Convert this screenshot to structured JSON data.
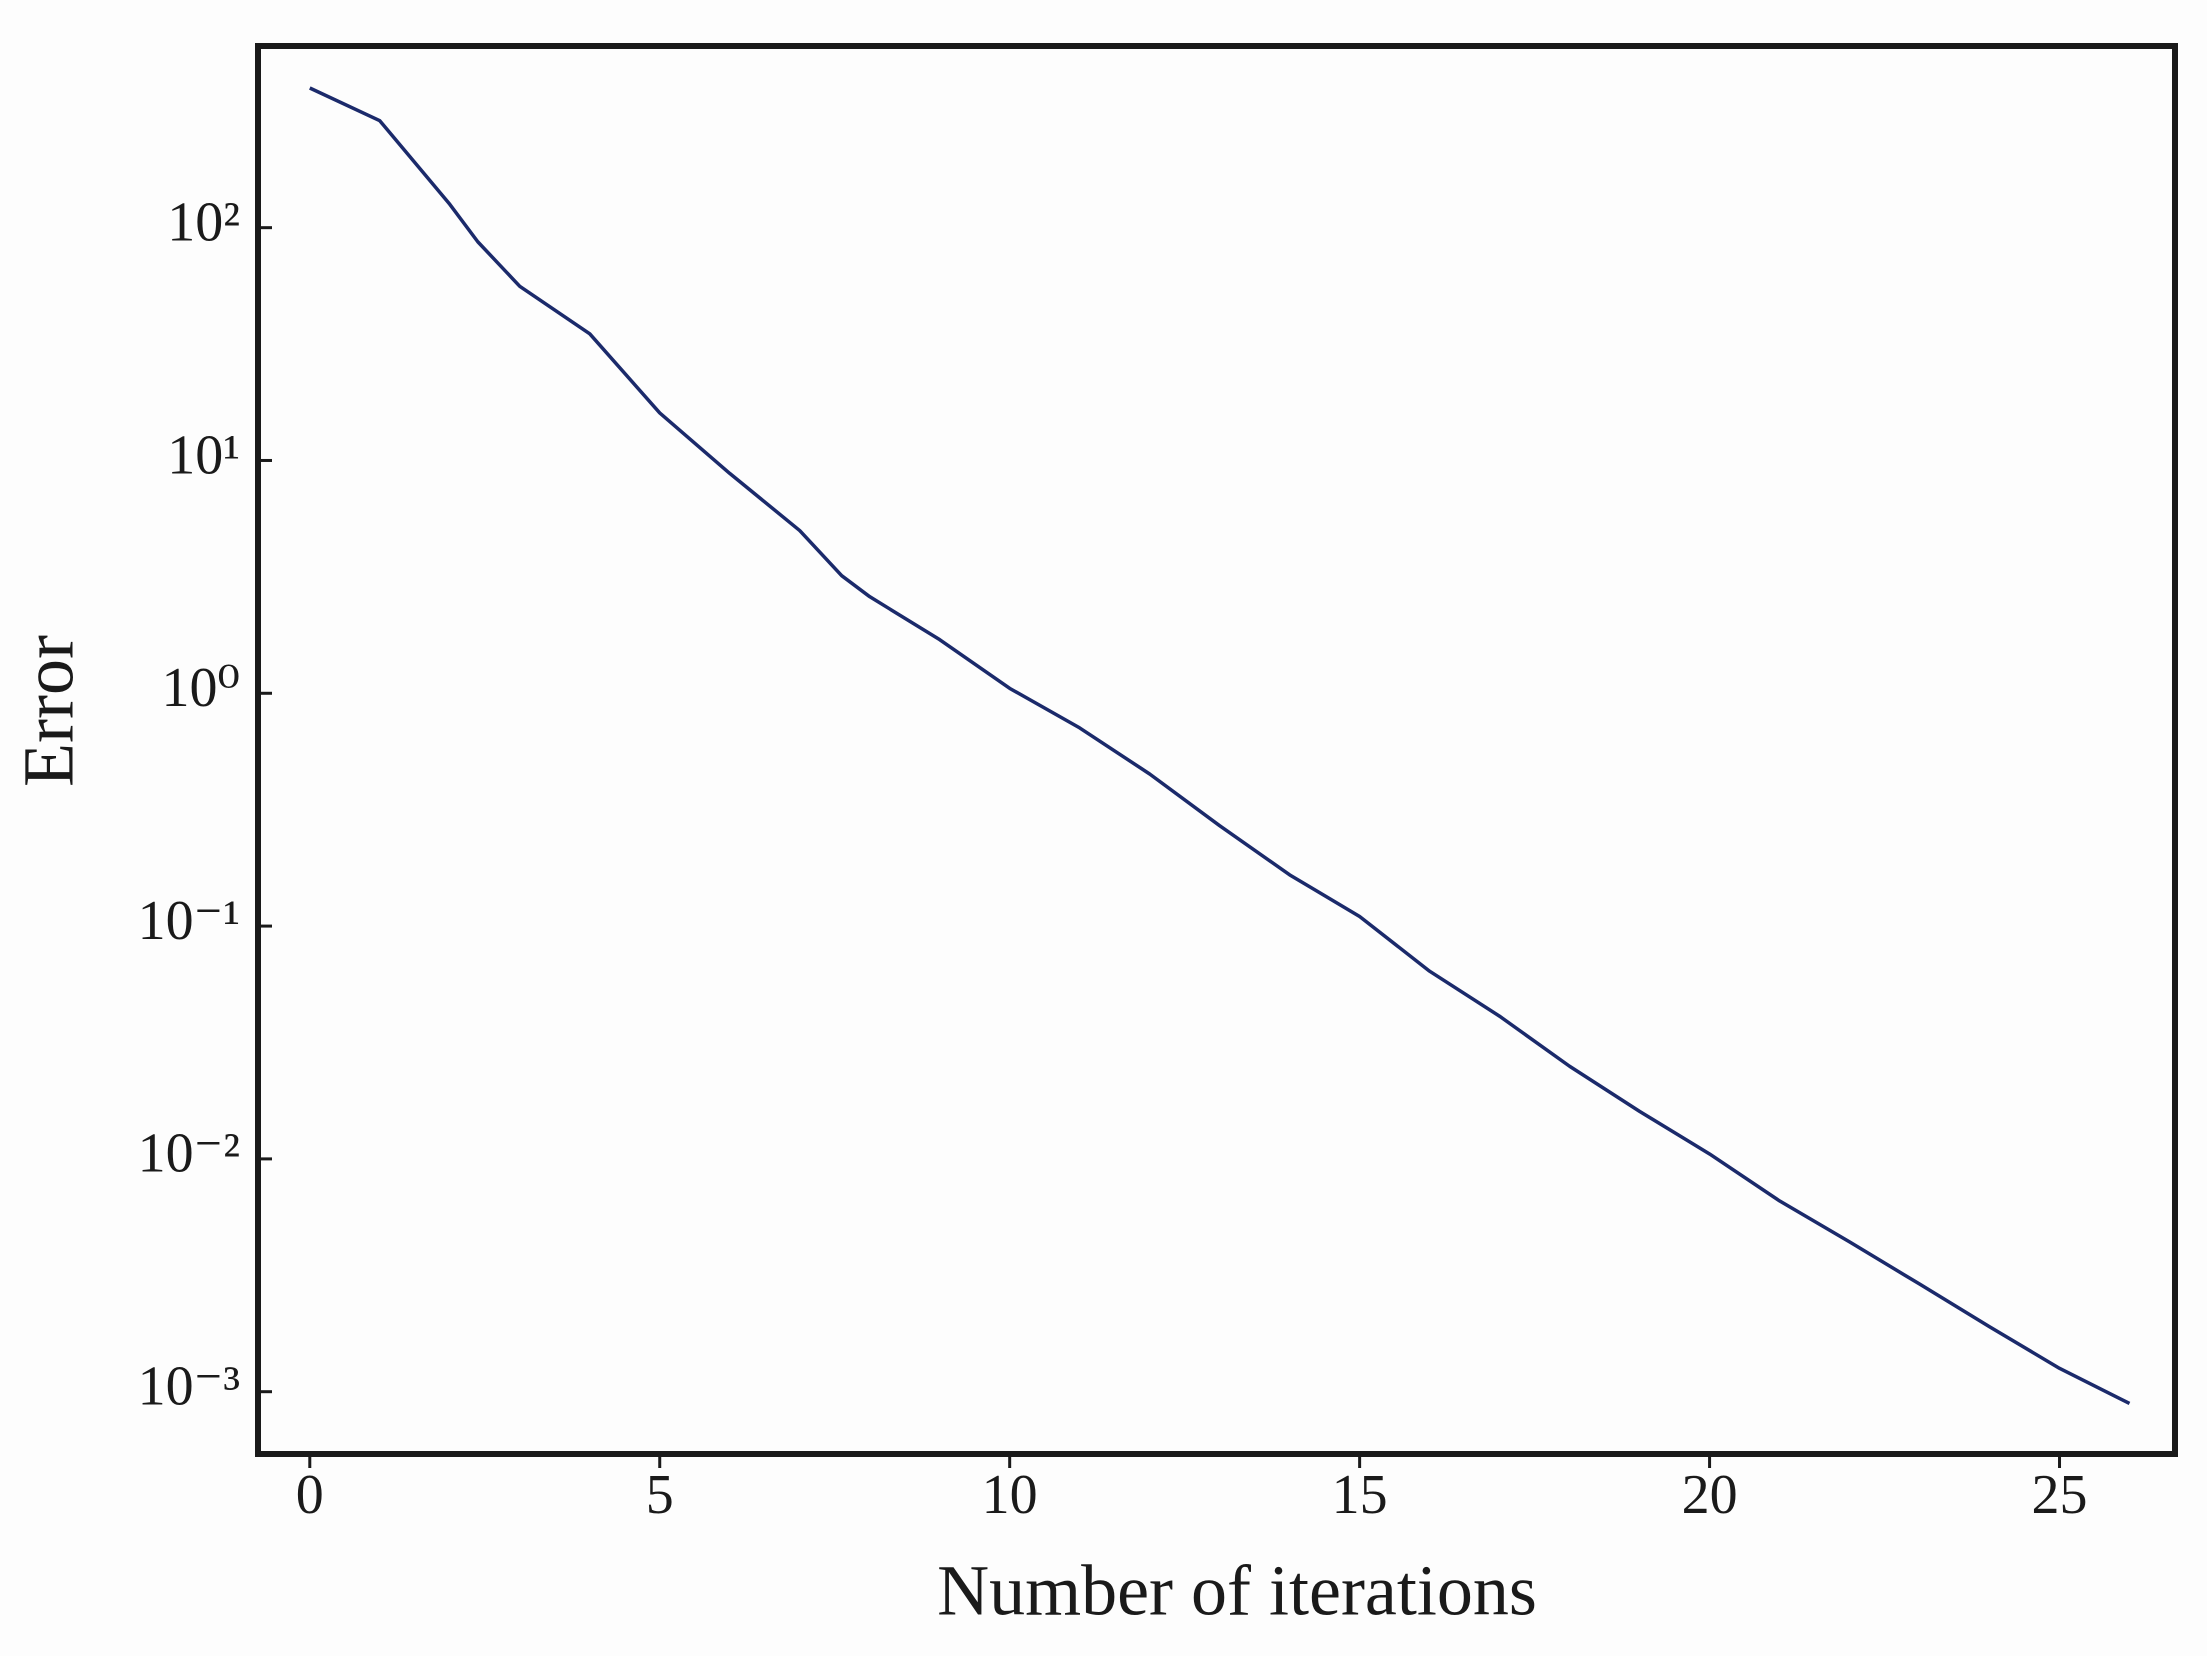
{
  "chart_data": {
    "type": "line",
    "x_label": "Number of iterations",
    "y_label": "Error",
    "x": [
      0,
      1,
      2,
      2.4,
      3,
      4,
      5,
      6,
      7,
      7.6,
      8,
      9,
      10,
      11,
      12,
      13,
      14,
      15,
      16,
      17,
      18,
      19,
      20,
      21,
      22,
      23,
      24,
      25,
      26
    ],
    "series": [
      {
        "name": "Error",
        "color": "#1b2a6b",
        "values": [
          398,
          288,
          126,
          87,
          56,
          35,
          16,
          8.8,
          5.0,
          3.2,
          2.6,
          1.7,
          1.05,
          0.71,
          0.45,
          0.27,
          0.166,
          0.11,
          0.064,
          0.041,
          0.025,
          0.016,
          0.0105,
          0.0066,
          0.0044,
          0.0029,
          0.0019,
          0.00126,
          0.00089
        ]
      }
    ],
    "xlim": [
      -0.74,
      26.65
    ],
    "xticks": [
      0,
      5,
      10,
      15,
      20,
      25
    ],
    "ylim": [
      0.00054,
      603
    ],
    "yscale": "log",
    "yticks": [
      {
        "value": 100,
        "label": "10²"
      },
      {
        "value": 10,
        "label": "10¹"
      },
      {
        "value": 1,
        "label": "10⁰"
      },
      {
        "value": 0.1,
        "label": "10⁻¹"
      },
      {
        "value": 0.01,
        "label": "10⁻²"
      },
      {
        "value": 0.001,
        "label": "10⁻³"
      }
    ],
    "grid": false
  }
}
